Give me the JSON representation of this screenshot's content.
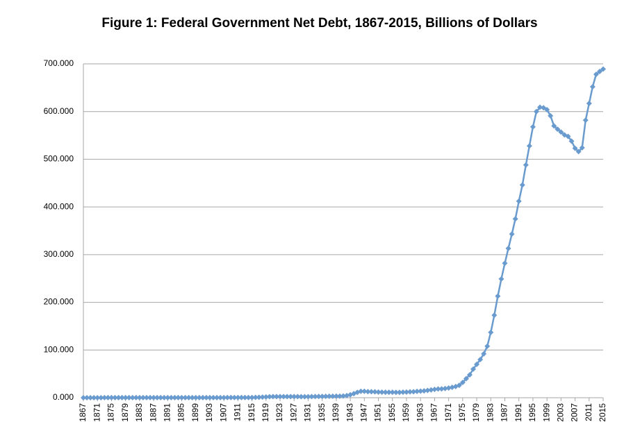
{
  "chart_data": {
    "type": "line",
    "title": "Figure 1: Federal Government Net Debt, 1867-2015, Billions of Dollars",
    "x": [
      1867,
      1868,
      1869,
      1870,
      1871,
      1872,
      1873,
      1874,
      1875,
      1876,
      1877,
      1878,
      1879,
      1880,
      1881,
      1882,
      1883,
      1884,
      1885,
      1886,
      1887,
      1888,
      1889,
      1890,
      1891,
      1892,
      1893,
      1894,
      1895,
      1896,
      1897,
      1898,
      1899,
      1900,
      1901,
      1902,
      1903,
      1904,
      1905,
      1906,
      1907,
      1908,
      1909,
      1910,
      1911,
      1912,
      1913,
      1914,
      1915,
      1916,
      1917,
      1918,
      1919,
      1920,
      1921,
      1922,
      1923,
      1924,
      1925,
      1926,
      1927,
      1928,
      1929,
      1930,
      1931,
      1932,
      1933,
      1934,
      1935,
      1936,
      1937,
      1938,
      1939,
      1940,
      1941,
      1942,
      1943,
      1944,
      1945,
      1946,
      1947,
      1948,
      1949,
      1950,
      1951,
      1952,
      1953,
      1954,
      1955,
      1956,
      1957,
      1958,
      1959,
      1960,
      1961,
      1962,
      1963,
      1964,
      1965,
      1966,
      1967,
      1968,
      1969,
      1970,
      1971,
      1972,
      1973,
      1974,
      1975,
      1976,
      1977,
      1978,
      1979,
      1980,
      1981,
      1982,
      1983,
      1984,
      1985,
      1986,
      1987,
      1988,
      1989,
      1990,
      1991,
      1992,
      1993,
      1994,
      1995,
      1996,
      1997,
      1998,
      1999,
      2000,
      2001,
      2002,
      2003,
      2004,
      2005,
      2006,
      2007,
      2008,
      2009,
      2010,
      2011,
      2012,
      2013,
      2014,
      2015
    ],
    "values": [
      0.08,
      0.08,
      0.09,
      0.08,
      0.08,
      0.09,
      0.1,
      0.11,
      0.12,
      0.13,
      0.13,
      0.14,
      0.14,
      0.15,
      0.16,
      0.15,
      0.16,
      0.18,
      0.2,
      0.22,
      0.23,
      0.23,
      0.24,
      0.24,
      0.24,
      0.24,
      0.24,
      0.24,
      0.25,
      0.25,
      0.26,
      0.26,
      0.27,
      0.27,
      0.27,
      0.27,
      0.26,
      0.26,
      0.27,
      0.27,
      0.26,
      0.28,
      0.29,
      0.32,
      0.34,
      0.34,
      0.31,
      0.34,
      0.45,
      0.7,
      0.88,
      1.2,
      1.6,
      2.2,
      2.3,
      2.4,
      2.45,
      2.4,
      2.4,
      2.4,
      2.35,
      2.3,
      2.25,
      2.2,
      2.25,
      2.4,
      2.6,
      2.7,
      2.8,
      2.95,
      3.1,
      3.1,
      3.2,
      3.3,
      3.6,
      4.5,
      6.2,
      8.6,
      11.3,
      13.4,
      13.4,
      12.8,
      12.6,
      12.4,
      11.9,
      11.6,
      11.5,
      11.4,
      11.5,
      11.3,
      11.3,
      11.6,
      11.9,
      12.3,
      12.6,
      13.2,
      13.8,
      14.4,
      15.2,
      16.3,
      17.4,
      18.3,
      18.6,
      19.2,
      20.3,
      21.8,
      23.5,
      26.0,
      32,
      40,
      48,
      60,
      70,
      80,
      92,
      108,
      137,
      173,
      213,
      249,
      282,
      313,
      343,
      375,
      412,
      446,
      488,
      528,
      568,
      600,
      609,
      608,
      604,
      591,
      570,
      563,
      557,
      551,
      548,
      538,
      523,
      516,
      524,
      582,
      617,
      652,
      678,
      684,
      689
    ],
    "color": "#6a9bcf",
    "xlim": [
      1867,
      2015
    ],
    "xticks": [
      1867,
      1871,
      1875,
      1879,
      1883,
      1887,
      1891,
      1895,
      1899,
      1903,
      1907,
      1911,
      1915,
      1919,
      1923,
      1927,
      1931,
      1935,
      1939,
      1943,
      1947,
      1951,
      1955,
      1959,
      1963,
      1967,
      1971,
      1975,
      1979,
      1983,
      1987,
      1991,
      1995,
      1999,
      2003,
      2007,
      2011,
      2015
    ],
    "ylim": [
      0,
      700
    ],
    "yticks": [
      {
        "value": 0,
        "label": "0.000"
      },
      {
        "value": 100,
        "label": "100.000"
      },
      {
        "value": 200,
        "label": "200.000"
      },
      {
        "value": 300,
        "label": "300.000"
      },
      {
        "value": 400,
        "label": "400.000"
      },
      {
        "value": 500,
        "label": "500.000"
      },
      {
        "value": 600,
        "label": "600.000"
      },
      {
        "value": 700,
        "label": "700.000"
      }
    ],
    "grid": true
  }
}
